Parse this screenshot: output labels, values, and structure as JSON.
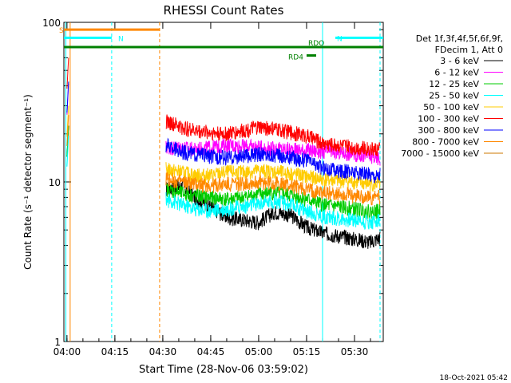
{
  "chart_data": {
    "type": "line",
    "title": "RHESSI Count Rates",
    "xlabel": "Start Time (28-Nov-06 03:59:02)",
    "ylabel": "Count Rate (s⁻¹ detector segment⁻¹)",
    "yscale": "log",
    "ylim": [
      1,
      100
    ],
    "xlim": [
      "03:59:02",
      "05:39:00"
    ],
    "x_ticks": [
      "04:00",
      "04:15",
      "04:30",
      "04:45",
      "05:00",
      "05:15",
      "05:30"
    ],
    "y_ticks": [
      "1",
      "10",
      "100"
    ],
    "grid": false,
    "legend_position": "right",
    "legend_header": [
      "Det 1f,3f,4f,5f,6f,9f,",
      "FDecim 1, Att 0"
    ],
    "footer_date": "18-Oct-2021 05:42",
    "series": [
      {
        "name": "3 - 6 keV",
        "color": "#000000",
        "x": [
          "04:31",
          "04:36",
          "04:40",
          "04:45",
          "04:50",
          "04:55",
          "05:00",
          "05:05",
          "05:10",
          "05:15",
          "05:20",
          "05:25",
          "05:30",
          "05:35",
          "05:38"
        ],
        "values": [
          9,
          9.5,
          8,
          7,
          6,
          5.8,
          5.6,
          6.5,
          6.2,
          5.2,
          4.8,
          4.6,
          4.4,
          4.2,
          4.5
        ]
      },
      {
        "name": "6 - 12 keV",
        "color": "#ff00ff",
        "x": [
          "04:31",
          "04:36",
          "04:40",
          "04:45",
          "04:50",
          "04:55",
          "05:00",
          "05:05",
          "05:10",
          "05:15",
          "05:20",
          "05:25",
          "05:30",
          "05:35",
          "05:38"
        ],
        "values": [
          16.5,
          16.5,
          16,
          16.5,
          17,
          16.8,
          16.5,
          16.2,
          16,
          15.8,
          15.5,
          15.3,
          15,
          14.5,
          14
        ]
      },
      {
        "name": "12 - 25 keV",
        "color": "#00cc00",
        "x": [
          "04:31",
          "04:36",
          "04:40",
          "04:45",
          "04:50",
          "04:55",
          "05:00",
          "05:05",
          "05:10",
          "05:15",
          "05:20",
          "05:25",
          "05:30",
          "05:35",
          "05:38"
        ],
        "values": [
          9,
          8.5,
          8.2,
          8,
          7.8,
          8,
          8.4,
          8.6,
          8.3,
          7.8,
          7.2,
          7,
          6.8,
          6.5,
          6.6
        ]
      },
      {
        "name": "25 - 50 keV",
        "color": "#00ffff",
        "x": [
          "04:31",
          "04:36",
          "04:40",
          "04:45",
          "04:50",
          "04:55",
          "05:00",
          "05:05",
          "05:10",
          "05:15",
          "05:20",
          "05:25",
          "05:30",
          "05:35",
          "05:38"
        ],
        "values": [
          7.8,
          7.2,
          6.8,
          6.6,
          6.8,
          7,
          7.3,
          7.6,
          7.2,
          6.6,
          6.1,
          5.9,
          5.8,
          5.6,
          5.8
        ]
      },
      {
        "name": "50 - 100 keV",
        "color": "#ffcc00",
        "x": [
          "04:31",
          "04:36",
          "04:40",
          "04:45",
          "04:50",
          "04:55",
          "05:00",
          "05:05",
          "05:10",
          "05:15",
          "05:20",
          "05:25",
          "05:30",
          "05:35",
          "05:38"
        ],
        "values": [
          12,
          11.5,
          11,
          11,
          11.5,
          11.5,
          11.8,
          11.6,
          11.3,
          10.8,
          10.4,
          10.2,
          10,
          9.7,
          9.8
        ]
      },
      {
        "name": "100 - 300 keV",
        "color": "#ff0000",
        "x": [
          "04:31",
          "04:36",
          "04:40",
          "04:45",
          "04:50",
          "04:55",
          "05:00",
          "05:05",
          "05:10",
          "05:15",
          "05:20",
          "05:25",
          "05:30",
          "05:35",
          "05:38"
        ],
        "values": [
          24,
          22,
          21,
          20.5,
          20,
          21,
          22,
          21.5,
          20.5,
          19.5,
          17.5,
          17,
          16.5,
          16.2,
          16
        ]
      },
      {
        "name": "300 - 800 keV",
        "color": "#0000ff",
        "x": [
          "04:31",
          "04:36",
          "04:40",
          "04:45",
          "04:50",
          "04:55",
          "05:00",
          "05:05",
          "05:10",
          "05:15",
          "05:20",
          "05:25",
          "05:30",
          "05:35",
          "05:38"
        ],
        "values": [
          17,
          15.5,
          15,
          14.5,
          14.2,
          14.5,
          15,
          14.8,
          14.3,
          13.7,
          12.3,
          11.8,
          11.5,
          11.2,
          11
        ]
      },
      {
        "name": "800 - 7000 keV",
        "color": "#ff8800",
        "x": [
          "04:31",
          "04:36",
          "04:40",
          "04:45",
          "04:50",
          "04:55",
          "05:00",
          "05:05",
          "05:10",
          "05:15",
          "05:20",
          "05:25",
          "05:30",
          "05:35",
          "05:38"
        ],
        "values": [
          10.5,
          10,
          9.7,
          9.5,
          9.7,
          9.8,
          10,
          9.8,
          9.5,
          9,
          8.6,
          8.4,
          8.2,
          8,
          8.1
        ]
      },
      {
        "name": "7000 - 15000 keV",
        "color": "#cc7a00",
        "x": [],
        "values": []
      }
    ],
    "annotations": [
      {
        "label": "S",
        "color": "#ff8800",
        "x_start": "03:59:02",
        "x_end": "04:29:00",
        "y": 90
      },
      {
        "label": "N",
        "color": "#00ffff",
        "x_start": "03:59:02",
        "x_end": "04:14:00",
        "y": 80
      },
      {
        "label": "N",
        "color": "#00ffff",
        "x_start": "05:24:00",
        "x_end": "05:39:00",
        "y": 80
      },
      {
        "label": "",
        "color": "#008000",
        "x_start": "03:59:02",
        "x_end": "05:39:00",
        "y": 70
      },
      {
        "label": "RD4",
        "color": "#008000",
        "x_start": "05:15:00",
        "x_end": "05:18:00",
        "y": 62
      },
      {
        "label": "RDO",
        "color": "#008000",
        "x_start": "05:18:00",
        "x_end": "05:18:00",
        "y": 70
      }
    ]
  }
}
